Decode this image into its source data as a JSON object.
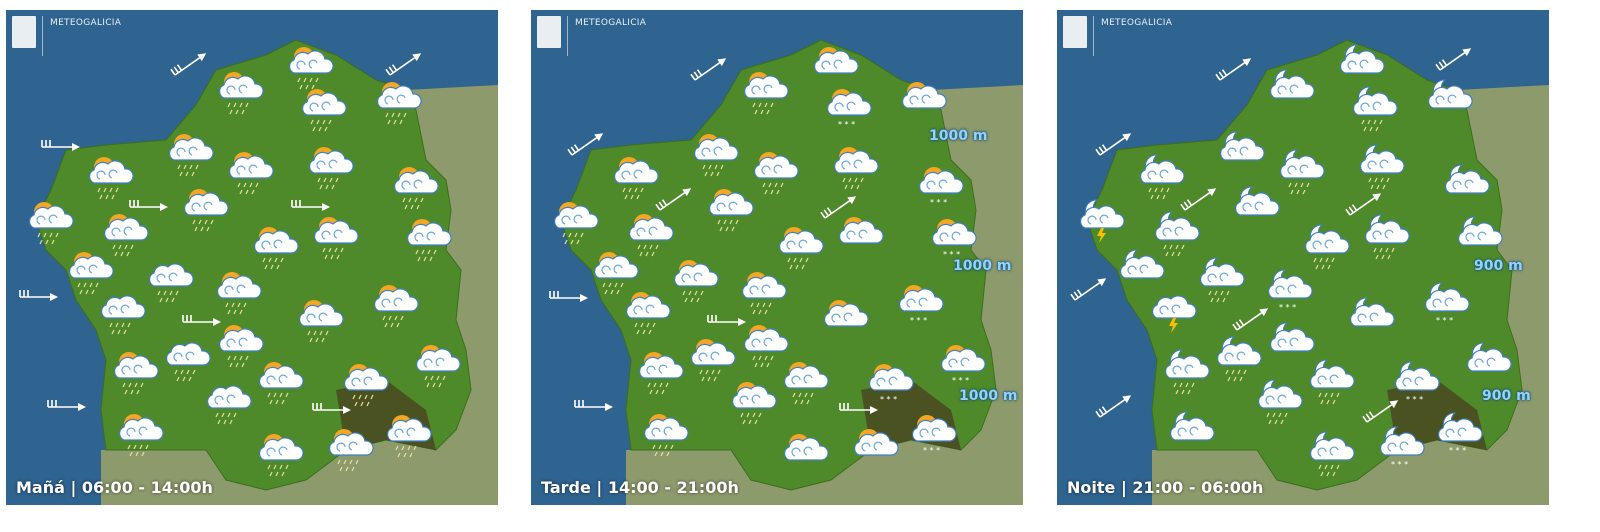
{
  "brand": "METEOGALICIA",
  "colors": {
    "sea": "#2f6390",
    "land": "#4f8a2a",
    "neighbour": "#8d9a6c",
    "sun": "#f5a623",
    "cloud": "#ffffff",
    "cloud_outline": "#3d7fc4",
    "label_altitude": "#8fd3ff"
  },
  "panels": [
    {
      "period": "Mañá | 06:00 - 14:00h",
      "icons": [
        "sun-cloud-rain",
        "sun-cloud-rain",
        "sun-cloud-rain",
        "sun-cloud-rain",
        "sun-cloud-rain",
        "sun-cloud-rain",
        "sun-cloud-rain",
        "sun-cloud-rain",
        "sun-cloud-rain",
        "sun-cloud-rain",
        "sun-cloud-rain",
        "sun-cloud-rain",
        "sun-cloud-rain",
        "sun-cloud-rain",
        "sun-cloud-rain",
        "sun-cloud-rain",
        "cloud-rain",
        "sun-cloud-rain",
        "cloud-rain",
        "sun-cloud-rain",
        "sun-cloud-rain",
        "sun-cloud-rain",
        "cloud-rain",
        "sun-cloud-rain",
        "sun-cloud-rain",
        "sun-cloud-rain",
        "sun-cloud-rain",
        "cloud-rain",
        "sun-cloud-rain",
        "sun-cloud-rain",
        "sun-cloud-rain",
        "sun-cloud-rain"
      ],
      "winds": [
        "northeast",
        "northeast",
        "east",
        "east",
        "east",
        "east",
        "east",
        "east",
        "east"
      ],
      "altitudes": []
    },
    {
      "period": "Tarde | 14:00 - 21:00h",
      "icons": [
        "sun-cloud-rain",
        "sun-cloud",
        "sun-cloud-snow",
        "sun-cloud",
        "sun-cloud-rain",
        "sun-cloud-rain",
        "sun-cloud-rain",
        "sun-cloud-rain",
        "sun-cloud-snow",
        "sun-cloud-rain",
        "sun-cloud-rain",
        "sun-cloud-rain",
        "sun-cloud-rain",
        "sun-cloud",
        "sun-cloud-snow",
        "sun-cloud-rain",
        "sun-cloud-rain",
        "sun-cloud-rain",
        "sun-cloud-rain",
        "sun-cloud",
        "sun-cloud-snow",
        "sun-cloud-rain",
        "sun-cloud-rain",
        "sun-cloud-rain",
        "sun-cloud-rain",
        "sun-cloud-snow",
        "sun-cloud-snow",
        "sun-cloud-rain",
        "sun-cloud-rain",
        "sun-cloud",
        "sun-cloud",
        "sun-cloud-snow"
      ],
      "winds": [
        "northeast",
        "northeast",
        "northeast",
        "northeast",
        "east",
        "east",
        "east",
        "east"
      ],
      "altitudes": [
        "1000 m",
        "1000 m",
        "1000 m"
      ]
    },
    {
      "period": "Noite | 21:00 - 06:00h",
      "icons": [
        "moon-cloud",
        "moon-cloud",
        "moon-cloud-rain",
        "moon-cloud",
        "moon-cloud-rain",
        "moon-cloud",
        "moon-cloud-rain",
        "moon-cloud-rain",
        "moon-cloud",
        "moon-cloud-storm",
        "moon-cloud-rain",
        "moon-cloud",
        "moon-cloud-rain",
        "moon-cloud-rain",
        "moon-cloud",
        "moon-cloud",
        "moon-cloud-rain",
        "moon-cloud-snow",
        "cloud-storm",
        "moon-cloud",
        "moon-cloud-snow",
        "moon-cloud-rain",
        "moon-cloud-rain",
        "moon-cloud",
        "moon-cloud-rain",
        "moon-cloud-snow",
        "moon-cloud",
        "moon-cloud-rain",
        "moon-cloud",
        "moon-cloud-rain",
        "moon-cloud-snow",
        "moon-cloud-snow"
      ],
      "winds": [
        "northeast",
        "northeast",
        "northeast",
        "northeast",
        "northeast",
        "northeast",
        "northeast",
        "northeast",
        "northeast"
      ],
      "altitudes": [
        "900 m",
        "900 m"
      ]
    }
  ]
}
